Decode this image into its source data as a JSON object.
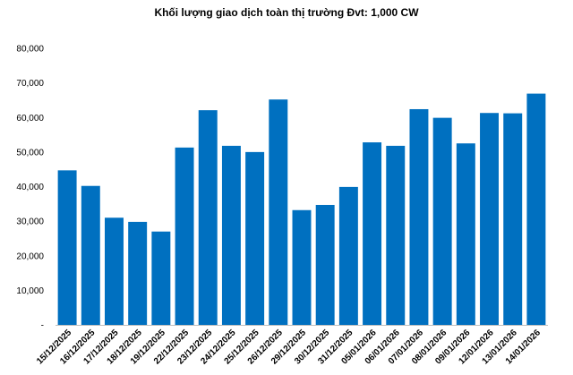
{
  "chart_data": {
    "type": "bar",
    "title": "Khối lượng giao dịch toàn thị trường Đvt: 1,000 CW",
    "xlabel": "",
    "ylabel": "",
    "ylim": [
      0,
      80000
    ],
    "y_ticks": [
      "-",
      "10,000",
      "20,000",
      "30,000",
      "40,000",
      "50,000",
      "60,000",
      "70,000",
      "80,000"
    ],
    "grid": false,
    "legend": "none",
    "bar_color": "#0070C0",
    "categories": [
      "15/12/2025",
      "16/12/2025",
      "17/12/2025",
      "18/12/2025",
      "19/12/2025",
      "22/12/2025",
      "23/12/2025",
      "24/12/2025",
      "25/12/2025",
      "26/12/2025",
      "29/12/2025",
      "30/12/2025",
      "31/12/2025",
      "05/01/2026",
      "06/01/2026",
      "07/01/2026",
      "08/01/2026",
      "09/01/2026",
      "12/01/2026",
      "13/01/2026",
      "14/01/2026"
    ],
    "values": [
      44700,
      40200,
      31000,
      29800,
      27000,
      51300,
      62100,
      51800,
      50000,
      65200,
      33200,
      34700,
      39900,
      52800,
      51800,
      62400,
      59900,
      52500,
      61300,
      61200,
      66900
    ]
  }
}
